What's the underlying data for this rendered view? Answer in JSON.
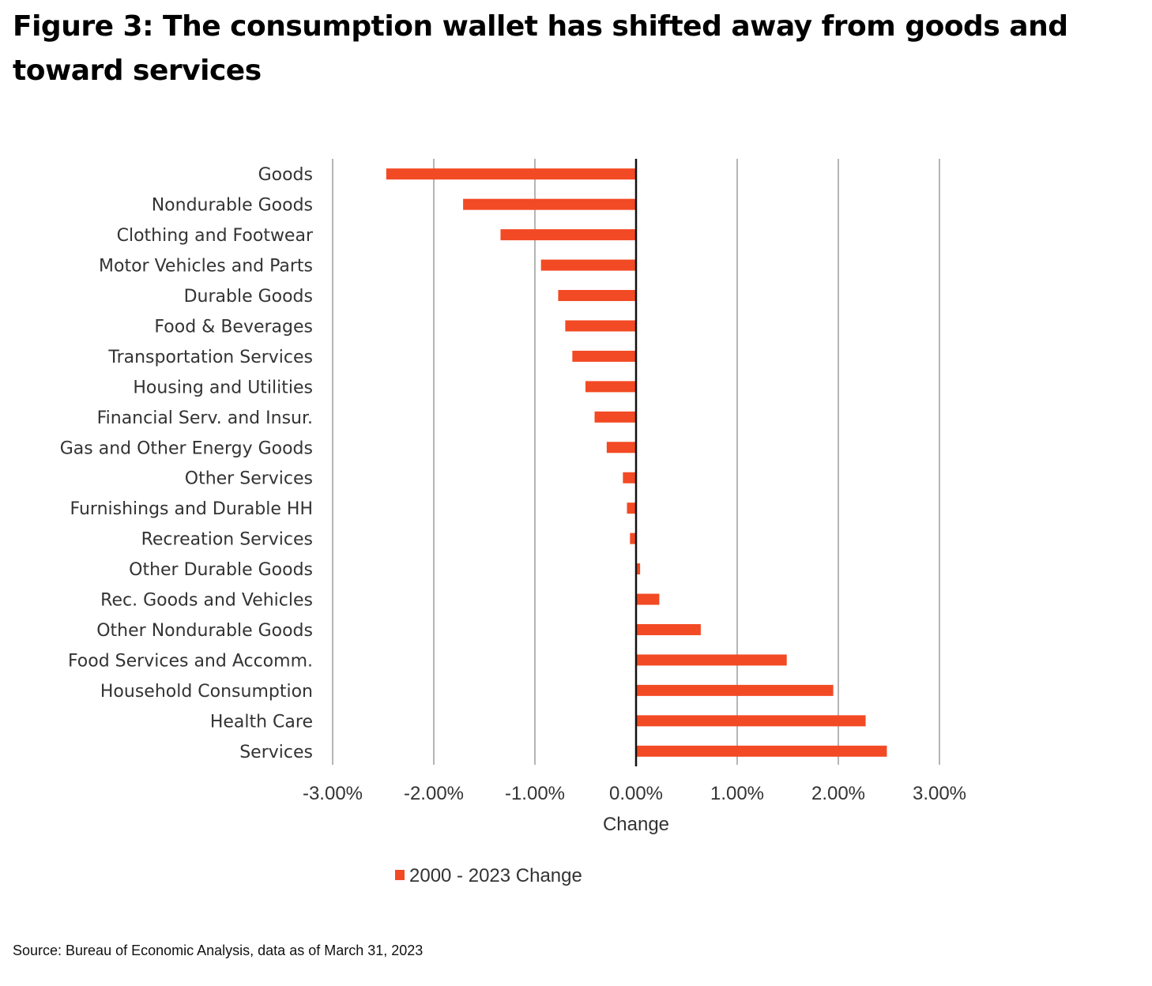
{
  "figure": {
    "title": "Figure 3: The consumption wallet has shifted away from goods and toward services",
    "source": "Source: Bureau of Economic Analysis, data as of March 31, 2023"
  },
  "chart_data": {
    "type": "bar",
    "orientation": "horizontal",
    "title": "",
    "xlabel": "Change",
    "ylabel": "",
    "xlim": [
      -0.03,
      0.03
    ],
    "x_ticks": [
      -0.03,
      -0.02,
      -0.01,
      0,
      0.01,
      0.02,
      0.03
    ],
    "x_tick_labels": [
      "-3.00%",
      "-2.00%",
      "-1.00%",
      "0.00%",
      "1.00%",
      "2.00%",
      "3.00%"
    ],
    "grid": "vertical",
    "legend_position": "bottom",
    "categories": [
      "Goods",
      "Nondurable Goods",
      "Clothing and Footwear",
      "Motor Vehicles and Parts",
      "Durable Goods",
      "Food & Beverages",
      "Transportation Services",
      "Housing and Utilities",
      "Financial Serv. and Insur.",
      "Gas and Other Energy Goods",
      "Other Services",
      "Furnishings and Durable HH",
      "Recreation Services",
      "Other Durable Goods",
      "Rec. Goods and Vehicles",
      "Other Nondurable Goods",
      "Food Services and Accomm.",
      "Household Consumption",
      "Health Care",
      "Services"
    ],
    "series": [
      {
        "name": "2000 - 2023 Change",
        "color": "#F24A24",
        "values": [
          -0.0247,
          -0.0171,
          -0.0134,
          -0.0094,
          -0.0077,
          -0.007,
          -0.0063,
          -0.005,
          -0.0041,
          -0.0029,
          -0.0013,
          -0.0009,
          -0.0006,
          0.0004,
          0.0023,
          0.0064,
          0.0149,
          0.0195,
          0.0227,
          0.0248
        ]
      }
    ],
    "colors": {
      "gridline": "#B5B5B5",
      "zero_axis": "#111111",
      "text": "#333333"
    }
  }
}
